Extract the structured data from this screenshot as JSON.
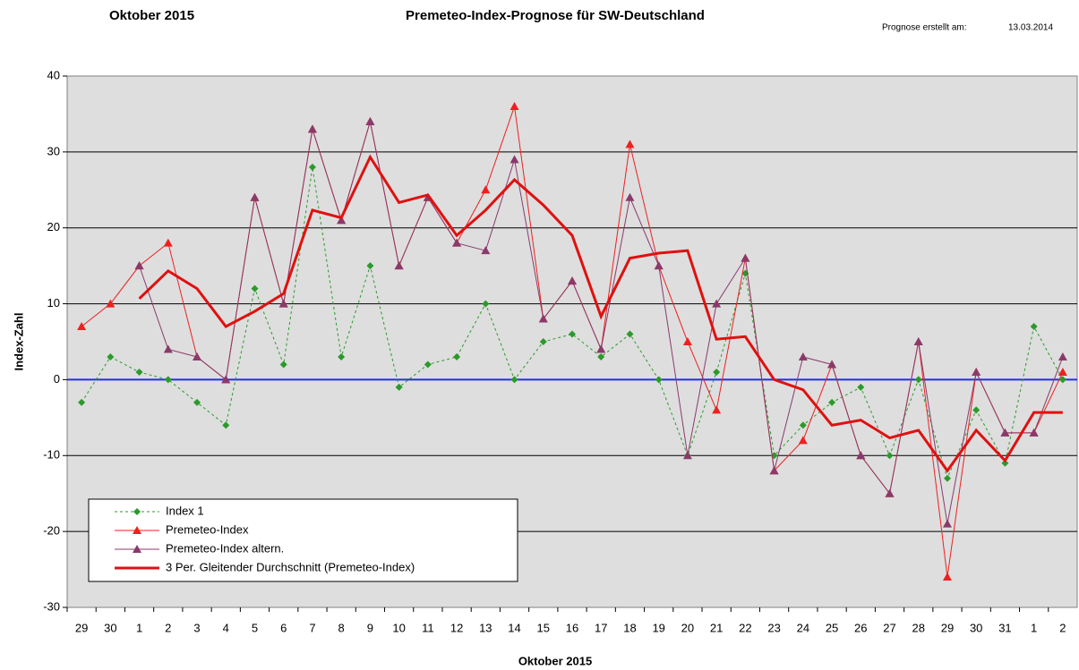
{
  "chart_data": {
    "type": "line",
    "period": "Oktober 2015",
    "title": "Premeteo-Index-Prognose für SW-Deutschland",
    "forecast_label": "Prognose erstellt am:",
    "forecast_date": "13.03.2014",
    "xlabel": "Oktober 2015",
    "ylabel": "Index-Zahl",
    "categories": [
      "29",
      "30",
      "1",
      "2",
      "3",
      "4",
      "5",
      "6",
      "7",
      "8",
      "9",
      "10",
      "11",
      "12",
      "13",
      "14",
      "15",
      "16",
      "17",
      "18",
      "19",
      "20",
      "21",
      "22",
      "23",
      "24",
      "25",
      "26",
      "27",
      "28",
      "29",
      "30",
      "31",
      "1",
      "2"
    ],
    "ylim": [
      -30,
      40
    ],
    "yticks": [
      -30,
      -20,
      -10,
      0,
      10,
      20,
      30,
      40
    ],
    "grid": true,
    "series": [
      {
        "name": "Index 1",
        "color": "#2a9a2a",
        "marker": "diamond",
        "style": "dotted",
        "width": 1,
        "values": [
          -3,
          3,
          1,
          0,
          -3,
          -6,
          12,
          2,
          28,
          3,
          15,
          -1,
          2,
          3,
          10,
          0,
          5,
          6,
          3,
          6,
          0,
          -10,
          1,
          14,
          -10,
          -6,
          -3,
          -1,
          -10,
          0,
          -13,
          -4,
          -11,
          7,
          0
        ]
      },
      {
        "name": "Premeteo-Index",
        "color": "#ee2020",
        "marker": "triangle",
        "style": "solid",
        "width": 1,
        "values": [
          7,
          10,
          15,
          18,
          3,
          0,
          24,
          10,
          33,
          21,
          34,
          15,
          24,
          18,
          25,
          36,
          8,
          13,
          4,
          31,
          15,
          5,
          -4,
          16,
          -12,
          -8,
          2,
          -10,
          -15,
          5,
          -26,
          1,
          -7,
          -7,
          1
        ]
      },
      {
        "name": "Premeteo-Index altern.",
        "color": "#8a3a6a",
        "marker": "triangle",
        "style": "solid",
        "width": 1,
        "values": [
          null,
          null,
          15,
          4,
          3,
          0,
          24,
          10,
          33,
          21,
          34,
          15,
          24,
          18,
          17,
          29,
          8,
          13,
          4,
          24,
          15,
          -10,
          10,
          16,
          -12,
          3,
          2,
          -10,
          -15,
          5,
          -19,
          1,
          -7,
          -7,
          3
        ]
      },
      {
        "name": "3 Per. Gleitender Durchschnitt (Premeteo-Index)",
        "color": "#e01010",
        "marker": "none",
        "style": "solid",
        "width": 3,
        "values": [
          null,
          null,
          10.67,
          14.33,
          12,
          7,
          9,
          11.33,
          22.33,
          21.33,
          29.33,
          23.33,
          24.33,
          19,
          22.33,
          26.33,
          23,
          19,
          8.33,
          16,
          16.67,
          17,
          5.33,
          5.67,
          0,
          -1.33,
          -6,
          -5.33,
          -7.67,
          -6.67,
          -12,
          -6.67,
          -10.67,
          -4.33,
          -4.33
        ]
      }
    ]
  }
}
